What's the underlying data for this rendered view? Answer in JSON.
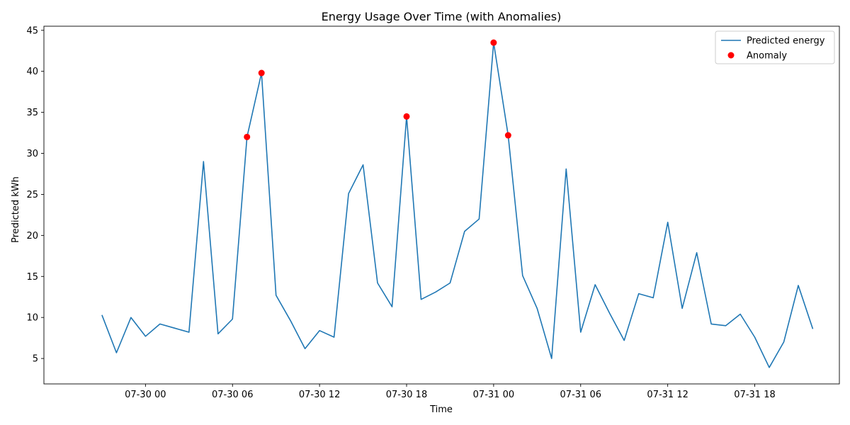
{
  "chart_data": {
    "type": "line",
    "title": "Energy Usage Over Time (with Anomalies)",
    "xlabel": "Time",
    "ylabel": "Predicted kWh",
    "ylim": [
      1.9,
      45.5
    ],
    "y_ticks": [
      5,
      10,
      15,
      20,
      25,
      30,
      35,
      40,
      45
    ],
    "xlim": [
      "2024-07-29 17:00",
      "2024-07-31 23:50"
    ],
    "x_ticks": [
      {
        "value": "2024-07-30 00:00",
        "label": "07-30 00"
      },
      {
        "value": "2024-07-30 06:00",
        "label": "07-30 06"
      },
      {
        "value": "2024-07-30 12:00",
        "label": "07-30 12"
      },
      {
        "value": "2024-07-30 18:00",
        "label": "07-30 18"
      },
      {
        "value": "2024-07-31 00:00",
        "label": "07-31 00"
      },
      {
        "value": "2024-07-31 06:00",
        "label": "07-31 06"
      },
      {
        "value": "2024-07-31 12:00",
        "label": "07-31 12"
      },
      {
        "value": "2024-07-31 18:00",
        "label": "07-31 18"
      }
    ],
    "legend_position": "top-right",
    "grid": false,
    "series": [
      {
        "name": "Predicted energy",
        "kind": "line",
        "color": "#1f77b4",
        "points": [
          [
            "2024-07-29 21:00",
            10.3
          ],
          [
            "2024-07-29 22:00",
            5.7
          ],
          [
            "2024-07-29 23:00",
            10.0
          ],
          [
            "2024-07-30 00:00",
            7.7
          ],
          [
            "2024-07-30 01:00",
            9.2
          ],
          [
            "2024-07-30 02:00",
            8.7
          ],
          [
            "2024-07-30 03:00",
            8.2
          ],
          [
            "2024-07-30 04:00",
            29.0
          ],
          [
            "2024-07-30 05:00",
            8.0
          ],
          [
            "2024-07-30 06:00",
            9.8
          ],
          [
            "2024-07-30 07:00",
            32.0
          ],
          [
            "2024-07-30 08:00",
            39.8
          ],
          [
            "2024-07-30 09:00",
            12.7
          ],
          [
            "2024-07-30 10:00",
            9.6
          ],
          [
            "2024-07-30 11:00",
            6.2
          ],
          [
            "2024-07-30 12:00",
            8.4
          ],
          [
            "2024-07-30 13:00",
            7.6
          ],
          [
            "2024-07-30 14:00",
            25.1
          ],
          [
            "2024-07-30 15:00",
            28.6
          ],
          [
            "2024-07-30 16:00",
            14.2
          ],
          [
            "2024-07-30 17:00",
            11.3
          ],
          [
            "2024-07-30 18:00",
            34.5
          ],
          [
            "2024-07-30 19:00",
            12.2
          ],
          [
            "2024-07-30 20:00",
            13.1
          ],
          [
            "2024-07-30 21:00",
            14.2
          ],
          [
            "2024-07-30 22:00",
            20.5
          ],
          [
            "2024-07-30 23:00",
            22.0
          ],
          [
            "2024-07-31 00:00",
            43.5
          ],
          [
            "2024-07-31 01:00",
            32.2
          ],
          [
            "2024-07-31 02:00",
            15.1
          ],
          [
            "2024-07-31 03:00",
            11.1
          ],
          [
            "2024-07-31 04:00",
            5.0
          ],
          [
            "2024-07-31 05:00",
            28.1
          ],
          [
            "2024-07-31 06:00",
            8.2
          ],
          [
            "2024-07-31 07:00",
            14.0
          ],
          [
            "2024-07-31 08:00",
            10.5
          ],
          [
            "2024-07-31 09:00",
            7.2
          ],
          [
            "2024-07-31 10:00",
            12.9
          ],
          [
            "2024-07-31 11:00",
            12.4
          ],
          [
            "2024-07-31 12:00",
            21.6
          ],
          [
            "2024-07-31 13:00",
            11.1
          ],
          [
            "2024-07-31 14:00",
            17.9
          ],
          [
            "2024-07-31 15:00",
            9.2
          ],
          [
            "2024-07-31 16:00",
            9.0
          ],
          [
            "2024-07-31 17:00",
            10.4
          ],
          [
            "2024-07-31 18:00",
            7.6
          ],
          [
            "2024-07-31 19:00",
            3.9
          ],
          [
            "2024-07-31 20:00",
            7.0
          ],
          [
            "2024-07-31 21:00",
            13.9
          ],
          [
            "2024-07-31 22:00",
            8.6
          ]
        ]
      },
      {
        "name": "Anomaly",
        "kind": "scatter",
        "color": "#ff0000",
        "points": [
          [
            "2024-07-30 07:00",
            32.0
          ],
          [
            "2024-07-30 08:00",
            39.8
          ],
          [
            "2024-07-30 18:00",
            34.5
          ],
          [
            "2024-07-31 00:00",
            43.5
          ],
          [
            "2024-07-31 01:00",
            32.2
          ]
        ]
      }
    ]
  }
}
